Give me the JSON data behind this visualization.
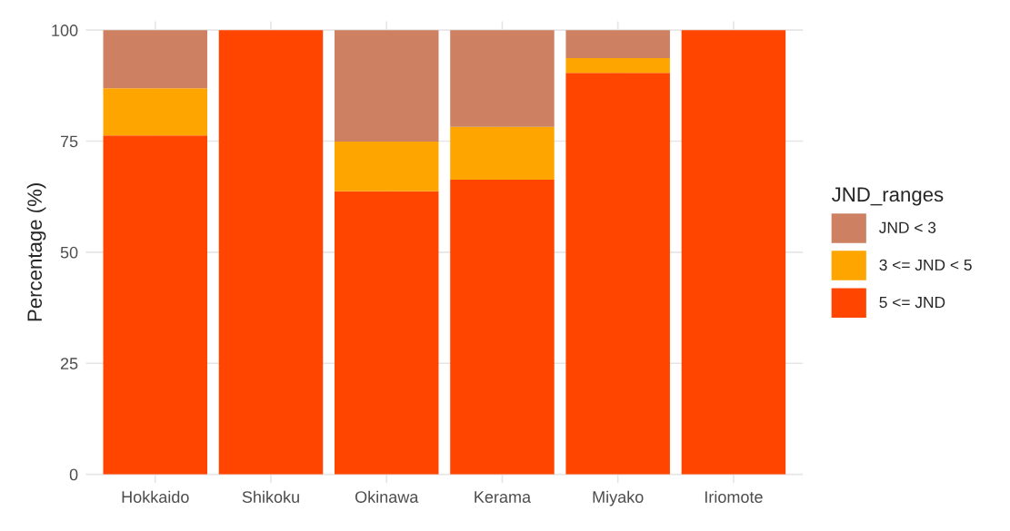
{
  "chart_data": {
    "type": "bar",
    "stacked": true,
    "ylabel": "Percentage (%)",
    "legend_title": "JND_ranges",
    "categories": [
      "Hokkaido",
      "Shikoku",
      "Okinawa",
      "Kerama",
      "Miyako",
      "Iriomote"
    ],
    "series": [
      {
        "name": "5 <= JND",
        "color": "#ff4500",
        "values": [
          76.3,
          100,
          63.7,
          66.3,
          90.4,
          100
        ]
      },
      {
        "name": "3 <= JND < 5",
        "color": "#ffa500",
        "values": [
          10.6,
          0,
          11.2,
          11.9,
          3.3,
          0
        ]
      },
      {
        "name": "JND < 3",
        "color": "#cd8162",
        "values": [
          13.1,
          0,
          25.1,
          21.8,
          6.3,
          0
        ]
      }
    ],
    "ylim": [
      -2,
      102
    ],
    "yticks": [
      0,
      25,
      50,
      75,
      100
    ],
    "grid": true,
    "legend": "right"
  }
}
